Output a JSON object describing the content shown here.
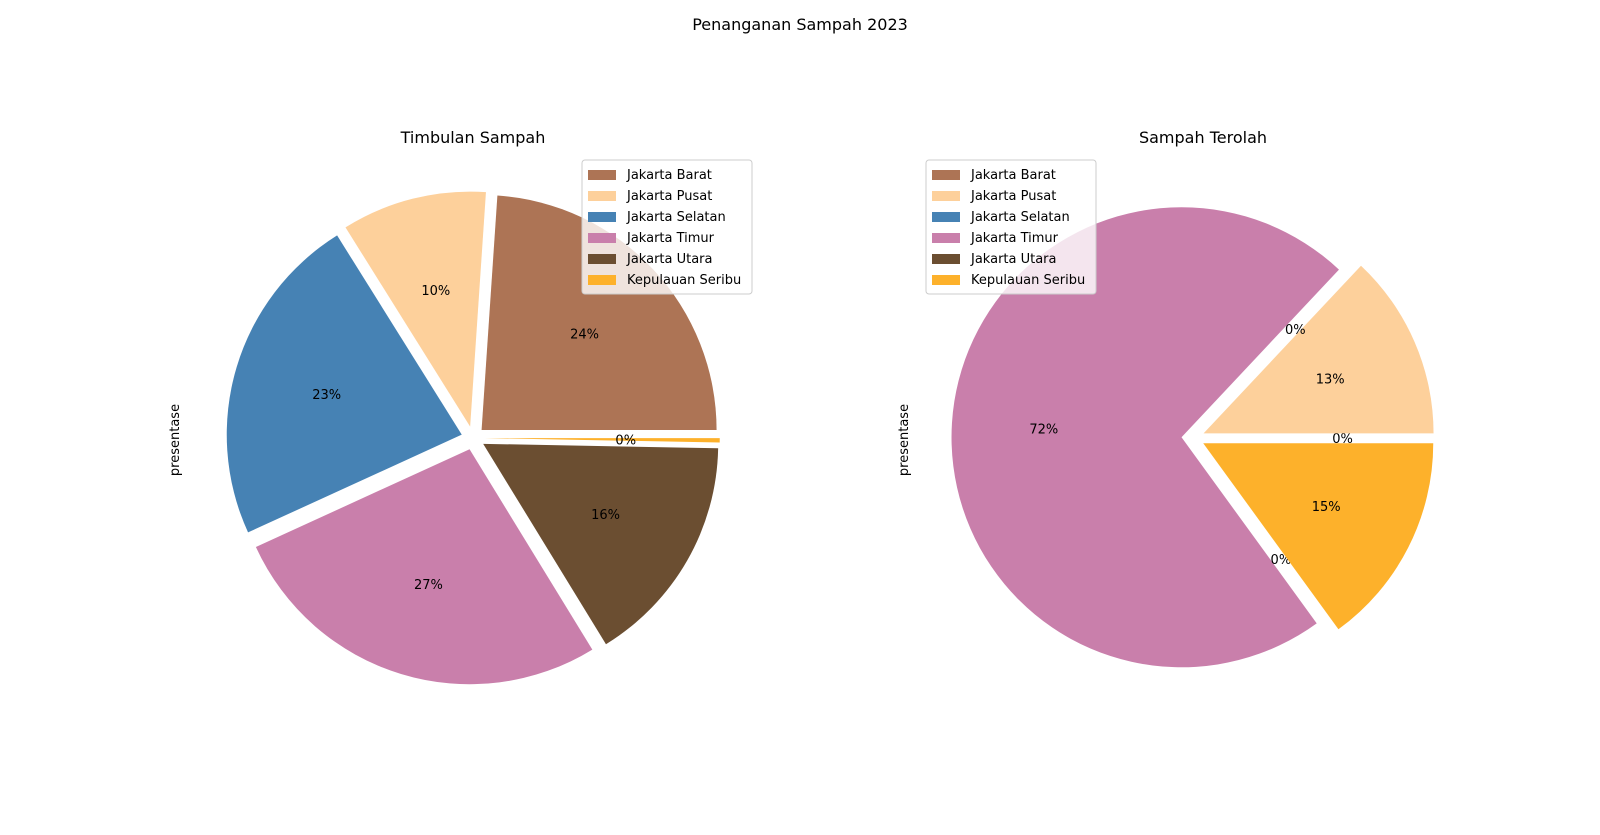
{
  "figure": {
    "title": "Penanganan Sampah 2023"
  },
  "legend_labels": [
    "Jakarta Barat",
    "Jakarta Pusat",
    "Jakarta Selatan",
    "Jakarta Timur",
    "Jakarta Utara",
    "Kepulauan Seribu"
  ],
  "colors": {
    "Jakarta Barat": "#ad7455",
    "Jakarta Pusat": "#fdd09b",
    "Jakarta Selatan": "#4682b4",
    "Jakarta Timur": "#c97fab",
    "Jakarta Utara": "#6b4e31",
    "Kepulauan Seribu": "#fdb12b"
  },
  "chart_data": [
    {
      "type": "pie",
      "title": "Timbulan Sampah",
      "ylabel": "presentase",
      "legend_loc": "upper right",
      "slices": [
        {
          "label": "Jakarta Barat",
          "value": 24,
          "pct_label": "24%"
        },
        {
          "label": "Jakarta Pusat",
          "value": 10,
          "pct_label": "10%"
        },
        {
          "label": "Jakarta Selatan",
          "value": 23,
          "pct_label": "23%"
        },
        {
          "label": "Jakarta Timur",
          "value": 27,
          "pct_label": "27%"
        },
        {
          "label": "Jakarta Utara",
          "value": 16,
          "pct_label": "16%"
        },
        {
          "label": "Kepulauan Seribu",
          "value": 0.3,
          "pct_label": "0%"
        }
      ]
    },
    {
      "type": "pie",
      "title": "Sampah Terolah",
      "ylabel": "presentase",
      "legend_loc": "upper left",
      "slices": [
        {
          "label": "Jakarta Barat",
          "value": 0,
          "pct_label": "0%"
        },
        {
          "label": "Jakarta Pusat",
          "value": 13,
          "pct_label": "13%"
        },
        {
          "label": "Jakarta Selatan",
          "value": 0,
          "pct_label": "0%"
        },
        {
          "label": "Jakarta Timur",
          "value": 72,
          "pct_label": "72%"
        },
        {
          "label": "Jakarta Utara",
          "value": 0,
          "pct_label": "0%"
        },
        {
          "label": "Kepulauan Seribu",
          "value": 15,
          "pct_label": "15%"
        }
      ]
    }
  ]
}
